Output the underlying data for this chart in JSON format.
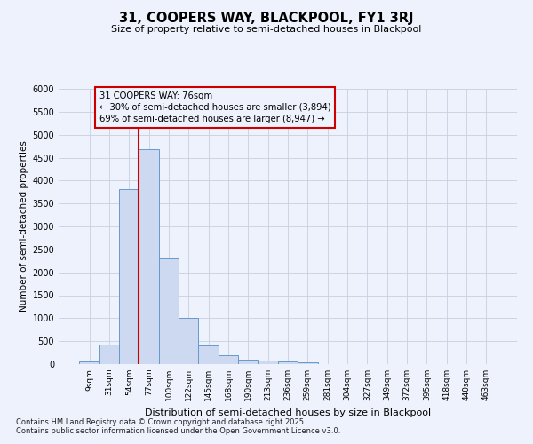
{
  "title": "31, COOPERS WAY, BLACKPOOL, FY1 3RJ",
  "subtitle": "Size of property relative to semi-detached houses in Blackpool",
  "xlabel": "Distribution of semi-detached houses by size in Blackpool",
  "ylabel": "Number of semi-detached properties",
  "categories": [
    "9sqm",
    "31sqm",
    "54sqm",
    "77sqm",
    "100sqm",
    "122sqm",
    "145sqm",
    "168sqm",
    "190sqm",
    "213sqm",
    "236sqm",
    "259sqm",
    "281sqm",
    "304sqm",
    "327sqm",
    "349sqm",
    "372sqm",
    "395sqm",
    "418sqm",
    "440sqm",
    "463sqm"
  ],
  "values": [
    50,
    430,
    3820,
    4680,
    2300,
    1000,
    410,
    200,
    90,
    70,
    60,
    30,
    0,
    0,
    0,
    0,
    0,
    0,
    0,
    0,
    0
  ],
  "bar_color": "#ccd9f0",
  "bar_edge_color": "#6699cc",
  "vline_x_idx": 3,
  "vline_color": "#cc0000",
  "annotation_title": "31 COOPERS WAY: 76sqm",
  "annotation_line1": "← 30% of semi-detached houses are smaller (3,894)",
  "annotation_line2": "69% of semi-detached houses are larger (8,947) →",
  "annotation_box_color": "#cc0000",
  "ylim": [
    0,
    6000
  ],
  "yticks": [
    0,
    500,
    1000,
    1500,
    2000,
    2500,
    3000,
    3500,
    4000,
    4500,
    5000,
    5500,
    6000
  ],
  "footnote1": "Contains HM Land Registry data © Crown copyright and database right 2025.",
  "footnote2": "Contains public sector information licensed under the Open Government Licence v3.0.",
  "bg_color": "#eef2fc",
  "grid_color": "#c8cfe0"
}
